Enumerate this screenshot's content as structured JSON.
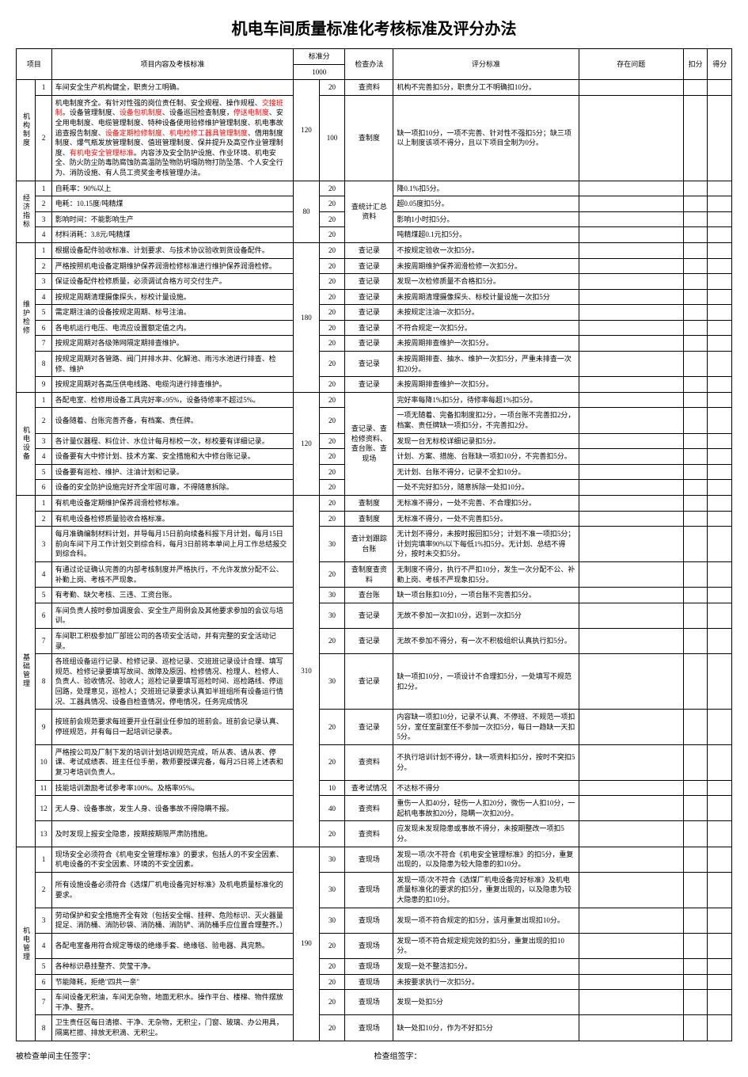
{
  "title": "机电车间质量标准化考核标准及评分办法",
  "headers": {
    "project": "项目",
    "content": "项目内容及考核标准",
    "standard_score": "标准分",
    "total_score": "1000",
    "check_method": "检查办法",
    "score_criteria": "评分标准",
    "problems": "存在问题",
    "deduct": "扣分",
    "get": "得分"
  },
  "sections": [
    {
      "category": "机构制度",
      "group_score": "120",
      "rows": [
        {
          "idx": "1",
          "content": "车间安全生产机构健全，职责分工明确。",
          "score": "20",
          "method": "查资料",
          "criteria": "机构不完善扣5分，职责分工不明确扣10分。"
        },
        {
          "idx": "2",
          "content_html": "机电制度齐全。有针对性强的岗位责任制、安全规程、操作规程、<span class='red'>交接班制</span>。设备管理制度、<span class='red'>设备包机制度</span>、设备巡回检查制度，<span class='red'>停送电制度</span>、安全用电制度、电缆管理制度、特种设备使用验修维护管理制度、机电事故追查报告制度、<span class='red'>设备定期检修制度、机电检修工器具管理制度</span>、借用制度制度、爆气瓶发放管理制度、值班管理制度、保井提升及高空作业管理制度、<span class='red'>有机电安全管理标准</span>。内容涉及安全防护设施、作业环境、机电安全、防火防尘防毒防腐蚀防高温防坠物防坍塌防物打防坠落、个人安全行为、消防设施、有人员工资奖金考核管理办法。",
          "score": "100",
          "method": "查制度",
          "criteria": "缺一项扣10分，一项不完善、针对性不强扣5分；缺三项以上制度该项不得分，且以下项目全制为0分。"
        }
      ]
    },
    {
      "category": "经济指标",
      "group_score": "80",
      "method_shared": "查统计汇总资料",
      "rows": [
        {
          "idx": "1",
          "content": "自耗率：90%以上",
          "score": "20",
          "criteria": "降0.1%扣5分。"
        },
        {
          "idx": "2",
          "content": "电耗：10.15度/吨精煤",
          "score": "20",
          "criteria": "超0.05度扣5分。"
        },
        {
          "idx": "3",
          "content": "影响时间：不能影响生产",
          "score": "20",
          "criteria": "影响1小时扣5分。"
        },
        {
          "idx": "4",
          "content": "材料消耗：3.8元/吨精煤",
          "score": "20",
          "criteria": "吨精煤超0.1元扣5分。"
        }
      ]
    },
    {
      "category": "维护检修",
      "group_score": "180",
      "rows": [
        {
          "idx": "1",
          "content": "根据设备配件验收标准、计划要求、与技术协议验收到货设备配件。",
          "score": "20",
          "method": "查记录",
          "criteria": "不按规定验收一次扣5分。"
        },
        {
          "idx": "2",
          "content": "严格按照机电设备定期维护保养润滑检修标准进行维护保养润滑检修。",
          "score": "20",
          "method": "查记录",
          "criteria": "未按周期维护保养润滑检修一次扣5分。"
        },
        {
          "idx": "3",
          "content": "保证设备配件检修质量，必须调试合格方可交付生产。",
          "score": "20",
          "method": "查记录",
          "criteria": "发现一次检修质量不合格扣5分。"
        },
        {
          "idx": "4",
          "content": "按规定周期清理摄像探头，标校计量设施。",
          "score": "20",
          "method": "查记录",
          "criteria": "未按周期清理摄像探头、标校计量设施一次扣5分"
        },
        {
          "idx": "5",
          "content": "需定期注油的设备按规定周期、标号注油。",
          "score": "20",
          "method": "查记录",
          "criteria": "未按规定注油一次扣5分。"
        },
        {
          "idx": "6",
          "content": "各电机运行电压、电流应设置额定值之内。",
          "score": "20",
          "method": "查记录",
          "criteria": "不符合规定一次扣5分。"
        },
        {
          "idx": "7",
          "content": "按规定周期对各级筛网隔定期排查维护。",
          "score": "20",
          "method": "查记录",
          "criteria": "未按周期排查维护一次扣5分。"
        },
        {
          "idx": "8",
          "content": "按规定周期对各管路、阀门并排水井、化解池、雨污水池进行排查、检修、维护",
          "score": "20",
          "method": "查记录",
          "criteria": "未按周期排查、抽水、维护一次扣5分，严重未排查一次扣20分。"
        },
        {
          "idx": "9",
          "content": "按规定周期对各高压供电线路、电缆沟进行排查维护。",
          "score": "20",
          "method": "查记录",
          "criteria": "未按周期排查维护一次扣5分。"
        }
      ]
    },
    {
      "category": "机电设备",
      "group_score": "120",
      "method_shared": "查记录、查检修资料、查台账、查现场",
      "rows": [
        {
          "idx": "1",
          "content": "各配电室、检修用设备工具完好率≥95%，设备待修率不超过5%。",
          "score": "20",
          "criteria": "完好率每降1%扣5分，待修率每超1%扣5分。"
        },
        {
          "idx": "2",
          "content": "设备随着、台账完善齐备，有档案、责任牌。",
          "score": "20",
          "criteria": "一项无随着、完备扣制度扣2分，一项台账不完善扣2分，档案、责任牌缺一项扣5分，不完善扣2分。"
        },
        {
          "idx": "3",
          "content": "各计量仪器程、料位计、水位计每月标校一次，标校要有详细记录。",
          "score": "20",
          "criteria": "发现一台无标校详细记录扣5分。"
        },
        {
          "idx": "4",
          "content": "设备要有大中修计划、技术方案、安全措施和大中修台账记录。",
          "score": "20",
          "criteria": "计划、方案、措施、台账缺一项扣10分，不完善扣5分。"
        },
        {
          "idx": "5",
          "content": "设备要有巡检、维护、注油计划和记录。",
          "score": "20",
          "criteria": "无计划、台账不得分，记录不全扣10分。"
        },
        {
          "idx": "6",
          "content": "设备的安全防护设施完好齐全牢固可靠，不得随意拆除。",
          "score": "20",
          "criteria": "一处不完好扣5分，随意拆除一处扣10分。"
        }
      ]
    },
    {
      "category": "基础管理",
      "group_score": "310",
      "rows": [
        {
          "idx": "1",
          "content": "有机电设备定期维护保养润滑检修标准。",
          "score": "20",
          "method": "查制度",
          "criteria": "无标准不得分，一处不完善、不合理扣5分。"
        },
        {
          "idx": "2",
          "content": "有机电设备检修质量验收合格标准。",
          "score": "20",
          "method": "查制度",
          "criteria": "无标准不得分，一处不完善扣5分。"
        },
        {
          "idx": "3",
          "content": "每月准确编制材料计划，并导每月15日前向续备科报下月计划，每月15日前向车间下月工作计划交到综合科，每月3日前将本单间上月工作总结报交到综合科。",
          "score": "30",
          "method": "查计划跟踪台账",
          "criteria": "无计划不得分，未按时报回扣5分；计划不准一项扣5分；计划完填率90%以下每低1%扣5分。无计划、总结不得分，按时未交扣5分。"
        },
        {
          "idx": "4",
          "content": "有通过论证确认完善的内部考核制度并严格执行，不允许发放分配不公、补勤上岗、考核不严现象。",
          "score": "20",
          "method": "查制度查资料",
          "criteria": "无制度不得分，执行不严扣10分，发生一次分配不公、补勤上岗、考核不严现象扣5分。"
        },
        {
          "idx": "5",
          "content": "有考勤、缺欠考核、三违、工资台账。",
          "score": "30",
          "method": "查台账",
          "criteria": "缺一项台账扣10分，一项台账不完善扣5分。"
        },
        {
          "idx": "6",
          "content": "车间负责人按时参加调度会、安全生产周例会及其他要求参加的会议与培训。",
          "score": "30",
          "method": "查记录",
          "criteria": "无故不参加一次扣10分，迟到一次扣5分"
        },
        {
          "idx": "7",
          "content": "车间职工积极参加厂部班公司的各项安全活动，并有完整的安全活动记录。",
          "score": "20",
          "method": "查记录",
          "criteria": "无故不参加不得分，有一次不积极组织认真执行扣5分。"
        },
        {
          "idx": "8",
          "content": "各班组设备运行记录、检修记录、巡检记录、交班班记录设计合理、填写规范、检修记录要填写故间、故障及原因、检修情况、检理人、检修人、负责人、验收情况、验收人；巡检记录要填写巡检时间、巡检路线、停运回路，处理意见，巡检人；交班班记录要求认真如半班组所有设备运行情况、工器具情况、设备自检查情况，停电情况，任务完成情况",
          "score": "30",
          "method": "查记录",
          "criteria": "缺一项扣10分，一项设计不合理扣5分，一处填写不规范扣2分。"
        },
        {
          "idx": "9",
          "content": "按班前会规范要求每班要开业任副业任参加的班前会。班前会记录认真、停班规范，并有每日一起培训记录表。",
          "score": "20",
          "method": "查记录",
          "criteria": "内容缺一项扣10分，记录不认真、不停班、不规范一项扣5分，室任室副室任不参加一次扣5分，每日一趋缺一天扣5分。"
        },
        {
          "idx": "10",
          "content": "严格按公司及厂制下发的培训计划培训规范完成，听从表、请从表、停课、考试成绩表、班主任位手册，教师要授课完备，每月25日将上述表和复习考培训负责人。",
          "score": "20",
          "method": "查资料",
          "criteria": "不执行培训计划不得分，缺一项资料扣5分，按时不突扣5分。"
        },
        {
          "idx": "11",
          "content": "技能培训激励考试参考率100%。及格率95%。",
          "score": "10",
          "method": "查考试情况",
          "criteria": "不达标不得分"
        },
        {
          "idx": "12",
          "content": "无人身、设备事故，发生人身、设备事故不得隐瞒不报。",
          "score": "40",
          "method": "查资料",
          "criteria": "重伤一人扣40分，轻伤一人扣20分，微伤一人扣10分，一起机电事故扣20分，隐瞒一次扣20分。"
        },
        {
          "idx": "13",
          "content": "及时发现上报安全隐患，按期按期限严肃防措施。",
          "score": "20",
          "method": "查资料",
          "criteria": "应发现未发现隐患或事故不得分，未按期整改一项扣5分。"
        }
      ]
    },
    {
      "category": "机电管理",
      "group_score": "190",
      "rows": [
        {
          "idx": "1",
          "content": "现场安全必须符合《机电安全管理标准》的要求，包括人的不安全因素、机电设备的不安全因素、环境的不安全因素。",
          "score": "30",
          "method": "查现场",
          "criteria": "发现一项/次不符合《机电安全管理标准》的扣5分，重复出现的，以及隐患为较大隐患的扣10分。"
        },
        {
          "idx": "2",
          "content": "所有设施设备必须符合《选煤厂机电设备完好标准》及机电质量标准化的要求。",
          "score": "30",
          "method": "查现场",
          "criteria": "发现一项/次不符合《选煤厂机电设备完好标准》及机电质量标准化的要求的扣5分，重复出现的，以及隐患为较大隐患的扣10分。"
        },
        {
          "idx": "3",
          "content": "劳动保护和安全措施齐全有效（包括安全帽、挂秤、危险标识、灭火器量提足、消防桶、消防砂袋、消防桶、消防铲、消防桶手应位置合理整齐。）",
          "score": "30",
          "method": "查现场",
          "criteria": "发现一项不符合规定的扣5分，该月重复出现扣10分。"
        },
        {
          "idx": "4",
          "content": "各配电室备用符合规定等级的绝缘手套、绝缘毯、验电器、具完熟。",
          "score": "20",
          "method": "查现场",
          "criteria": "发现一项不符合规定规完效的扣5分，重复出现的扣10分。"
        },
        {
          "idx": "5",
          "content": "各种标识悬挂整齐、荧莹干净。",
          "score": "20",
          "method": "查现场",
          "criteria": "发现一处不整洁扣5分。"
        },
        {
          "idx": "6",
          "content": "节能降耗，拒绝\"四共一亲\"",
          "score": "20",
          "method": "查现场",
          "criteria": "未按要求执行一次扣5分。"
        },
        {
          "idx": "7",
          "content": "车间设备无积油，车间无杂物，地面无积水。操作平台、楼梯、物件摆放干净、整齐。",
          "score": "20",
          "method": "查现场",
          "criteria": "发现一处扣5分"
        },
        {
          "idx": "8",
          "content": "卫生责任区每日清擦、干净、无杂物，无积尘，门窗、玻璃、办公用具，隔离栏擦、排放无积滴、无积尘。",
          "score": "20",
          "method": "查现场",
          "criteria": "缺一处扣10分，作为不好扣5分"
        }
      ]
    }
  ],
  "footer": {
    "left": "被检查单间主任签字：",
    "right": "检查组签字："
  }
}
